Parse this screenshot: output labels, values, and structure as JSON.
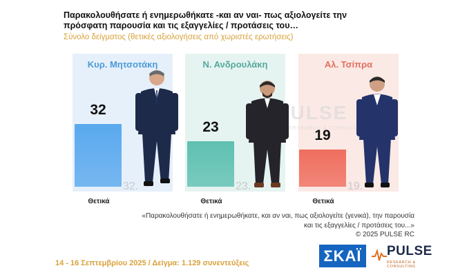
{
  "title": "Παρακολουθήσατε ή ενημερωθήκατε -και αν ναι- πως αξιολογείτε την πρόσφατη παρουσία και τις εξαγγελίες / προτάσεις του…",
  "subtitle": "Σύνολο δείγματος  (θετικές αξιολογήσεις από χωριστές ερωτήσεις)",
  "watermark": {
    "main": "PULSE",
    "sub": "RESEARCH & CONSULTING"
  },
  "quote": "«Παρακολουθήσατε ή ενημερωθήκατε, και αν ναι, πως αξιολογείτε (γενικά), την παρουσία και τις εξαγγελίες / προτάσεις του...»",
  "copyright": "© 2025 PULSE RC",
  "footer": "14 - 16 Σεπτεμβρίου 2025  /  Δείγμα:  1.129 συνεντεύξεις",
  "logos": {
    "skai": "ΣΚΑΪ",
    "pulse": "PULSE",
    "pulse_sub": "RESEARCH & CONSULTING"
  },
  "colors": {
    "panel_1": "#e6f0fb",
    "bar_1": "#5aa9ee",
    "name_1": "#4a9ad8",
    "panel_2": "#e5f4f1",
    "bar_2": "#5ec0b1",
    "name_2": "#55a89c",
    "panel_3": "#fbe9e5",
    "bar_3": "#ef6e5e",
    "name_3": "#e0705f"
  },
  "chart_data": {
    "type": "bar",
    "categories": [
      "Κυρ. Μητσοτάκη",
      "Ν. Ανδρουλάκη",
      "Αλ. Τσίπρα"
    ],
    "series": [
      {
        "name": "Θετικά",
        "values": [
          32,
          23,
          19
        ]
      }
    ],
    "ghost_labels": [
      "32.",
      "23.",
      "19."
    ],
    "ylim": [
      0,
      100
    ],
    "grid": false
  }
}
